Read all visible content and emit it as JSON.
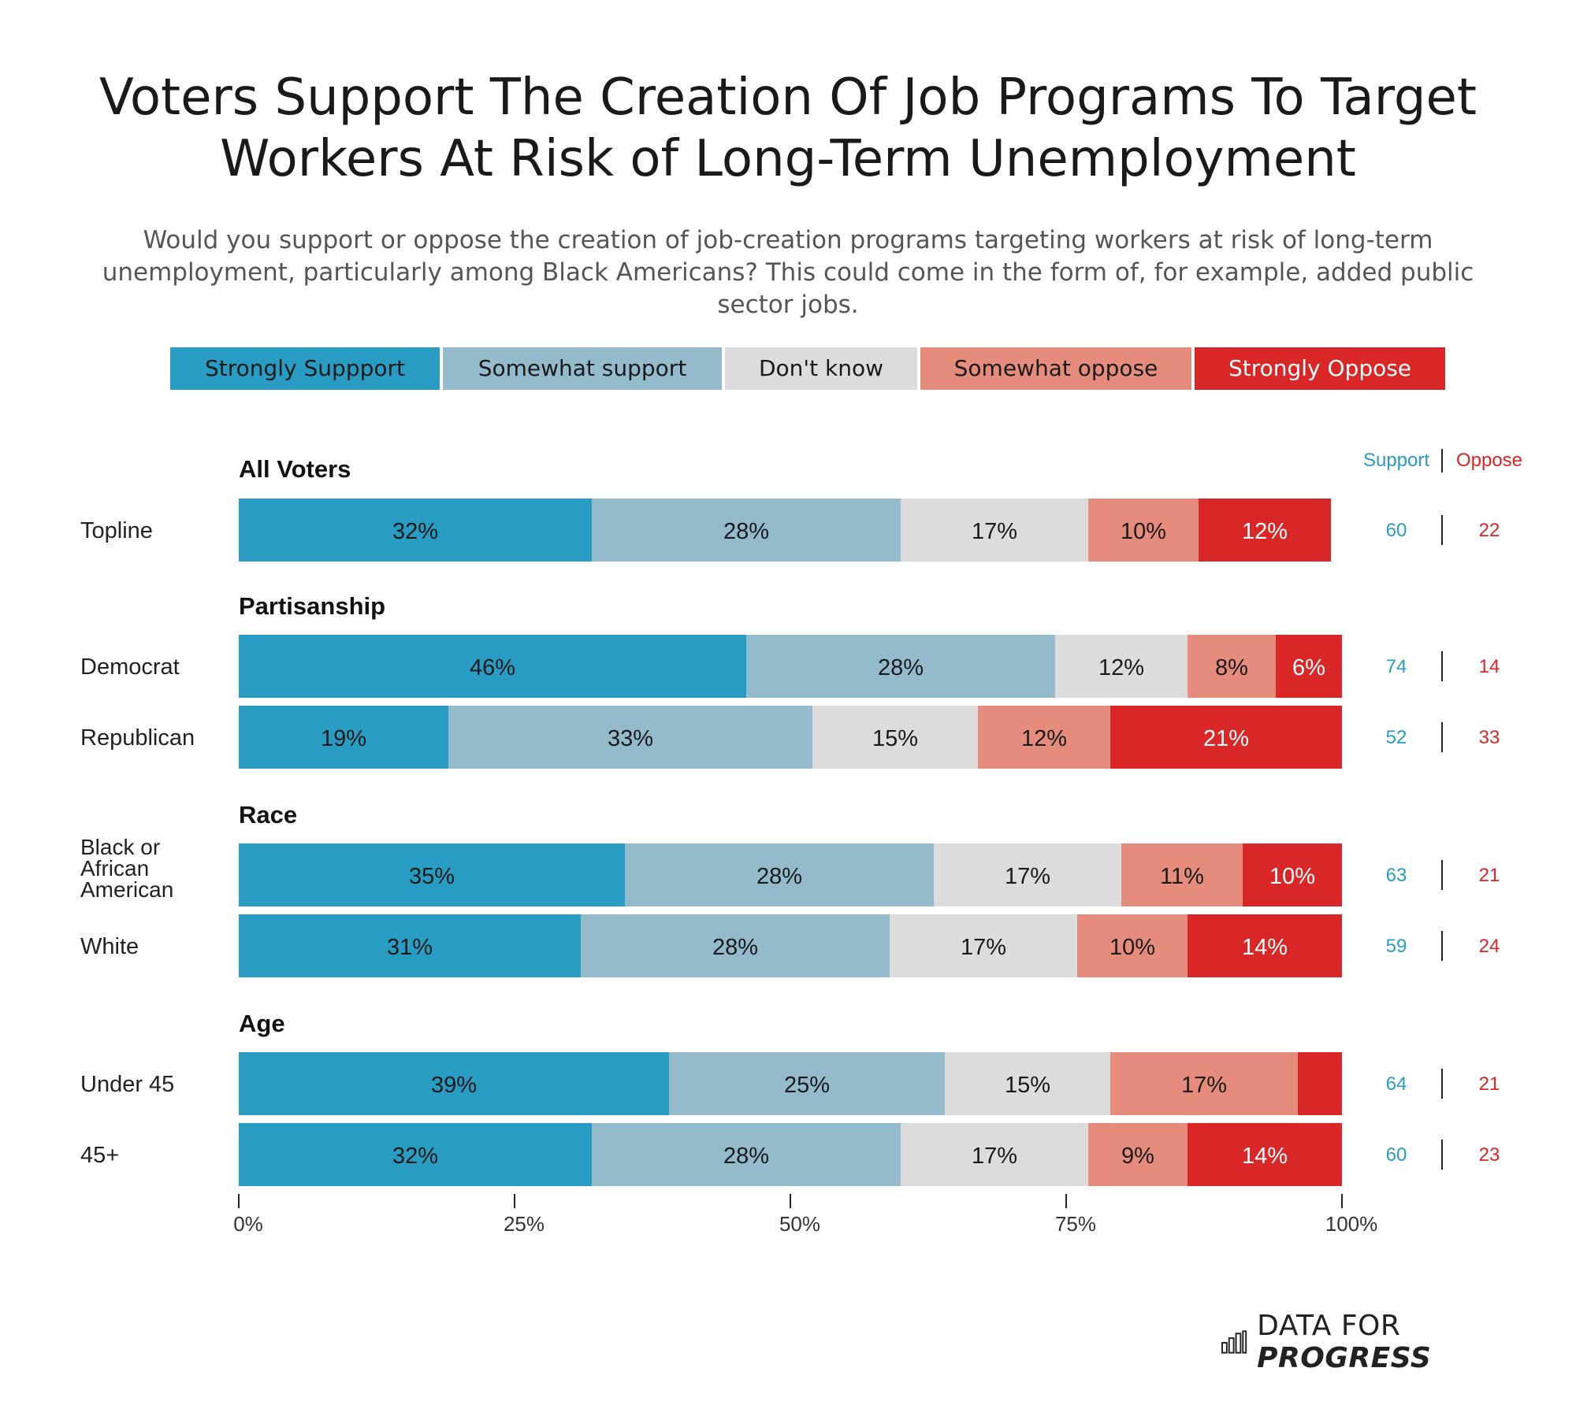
{
  "title": "Voters Support The Creation Of Job Programs To Target Workers At Risk of Long-Term Unemployment",
  "subtitle": "Would you support or oppose the creation of job-creation programs targeting workers at risk of long-term unemployment, particularly among Black Americans? This could come in the form of, for example, added public sector jobs.",
  "legend": [
    {
      "label": "Strongly Suppport",
      "color": "#289cc2",
      "text_color": "#1a1a1a"
    },
    {
      "label": "Somewhat support",
      "color": "#94bbcc",
      "text_color": "#1a1a1a"
    },
    {
      "label": "Don't know",
      "color": "#dcdcdc",
      "text_color": "#1a1a1a"
    },
    {
      "label": "Somewhat oppose",
      "color": "#e68c7c",
      "text_color": "#1a1a1a"
    },
    {
      "label": "Strongly Oppose",
      "color": "#d92626",
      "text_color": "#ffffff"
    }
  ],
  "net_headers": {
    "support": "Support",
    "oppose": "Oppose",
    "support_color": "#289cc2",
    "oppose_color": "#d92626"
  },
  "chart_data": {
    "type": "bar",
    "orientation": "horizontal-stacked",
    "xlim": [
      0,
      100
    ],
    "x_ticks": [
      "0%",
      "25%",
      "50%",
      "75%",
      "100%"
    ],
    "x_tick_values": [
      0,
      25,
      50,
      75,
      100
    ],
    "series_names": [
      "Strongly Suppport",
      "Somewhat support",
      "Don't know",
      "Somewhat oppose",
      "Strongly Oppose"
    ],
    "groups": [
      {
        "heading": "All Voters",
        "rows": [
          {
            "label": "Topline",
            "values": [
              32,
              28,
              17,
              10,
              12
            ],
            "labels": [
              "32%",
              "28%",
              "17%",
              "10%",
              "12%"
            ],
            "support": "60",
            "oppose": "22"
          }
        ]
      },
      {
        "heading": "Partisanship",
        "rows": [
          {
            "label": "Democrat",
            "values": [
              46,
              28,
              12,
              8,
              6
            ],
            "labels": [
              "46%",
              "28%",
              "12%",
              "8%",
              "6%"
            ],
            "support": "74",
            "oppose": "14"
          },
          {
            "label": "Republican",
            "values": [
              19,
              33,
              15,
              12,
              21
            ],
            "labels": [
              "19%",
              "33%",
              "15%",
              "12%",
              "21%"
            ],
            "support": "52",
            "oppose": "33"
          }
        ]
      },
      {
        "heading": "Race",
        "rows": [
          {
            "label": "Black or African American",
            "values": [
              35,
              28,
              17,
              11,
              10
            ],
            "labels": [
              "35%",
              "28%",
              "17%",
              "11%",
              "10%"
            ],
            "support": "63",
            "oppose": "21"
          },
          {
            "label": "White",
            "values": [
              31,
              28,
              17,
              10,
              14
            ],
            "labels": [
              "31%",
              "28%",
              "17%",
              "10%",
              "14%"
            ],
            "support": "59",
            "oppose": "24"
          }
        ]
      },
      {
        "heading": "Age",
        "rows": [
          {
            "label": "Under 45",
            "values": [
              39,
              25,
              15,
              17,
              4
            ],
            "labels": [
              "39%",
              "25%",
              "15%",
              "17%",
              ""
            ],
            "support": "64",
            "oppose": "21"
          },
          {
            "label": "45+",
            "values": [
              32,
              28,
              17,
              9,
              14
            ],
            "labels": [
              "32%",
              "28%",
              "17%",
              "9%",
              "14%"
            ],
            "support": "60",
            "oppose": "23"
          }
        ]
      }
    ]
  },
  "logo": {
    "text_normal": "DATA FOR",
    "text_bold": "PROGRESS"
  }
}
